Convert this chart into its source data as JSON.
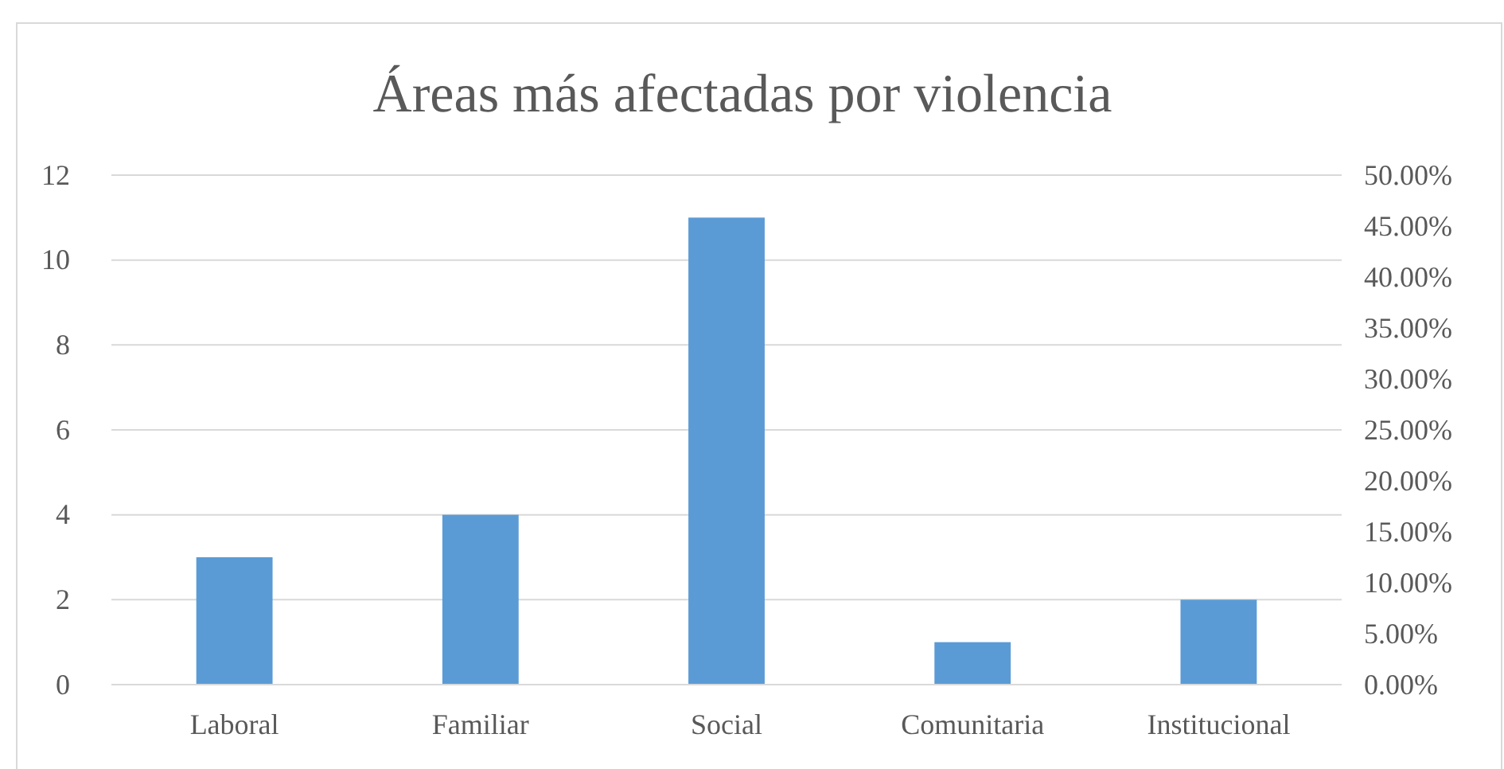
{
  "chart_data": {
    "type": "bar",
    "title": "Áreas más afectadas por violencia",
    "categories": [
      "Laboral",
      "Familiar",
      "Social",
      "Comunitaria",
      "Institucional"
    ],
    "series": [
      {
        "color": "#5b9bd5",
        "values": [
          3,
          4,
          11,
          1,
          2
        ]
      }
    ],
    "ylim": [
      0,
      12
    ],
    "yticks": [
      0,
      2,
      4,
      6,
      8,
      10,
      12
    ],
    "y2lim": [
      0,
      50
    ],
    "y2ticks": [
      {
        "value": 0,
        "label": "0.00%"
      },
      {
        "value": 5,
        "label": "5.00%"
      },
      {
        "value": 10,
        "label": "10.00%"
      },
      {
        "value": 15,
        "label": "15.00%"
      },
      {
        "value": 20,
        "label": "20.00%"
      },
      {
        "value": 25,
        "label": "25.00%"
      },
      {
        "value": 30,
        "label": "30.00%"
      },
      {
        "value": 35,
        "label": "35.00%"
      },
      {
        "value": 40,
        "label": "40.00%"
      },
      {
        "value": 45,
        "label": "45.00%"
      },
      {
        "value": 50,
        "label": "50.00%"
      }
    ],
    "grid": "y"
  }
}
